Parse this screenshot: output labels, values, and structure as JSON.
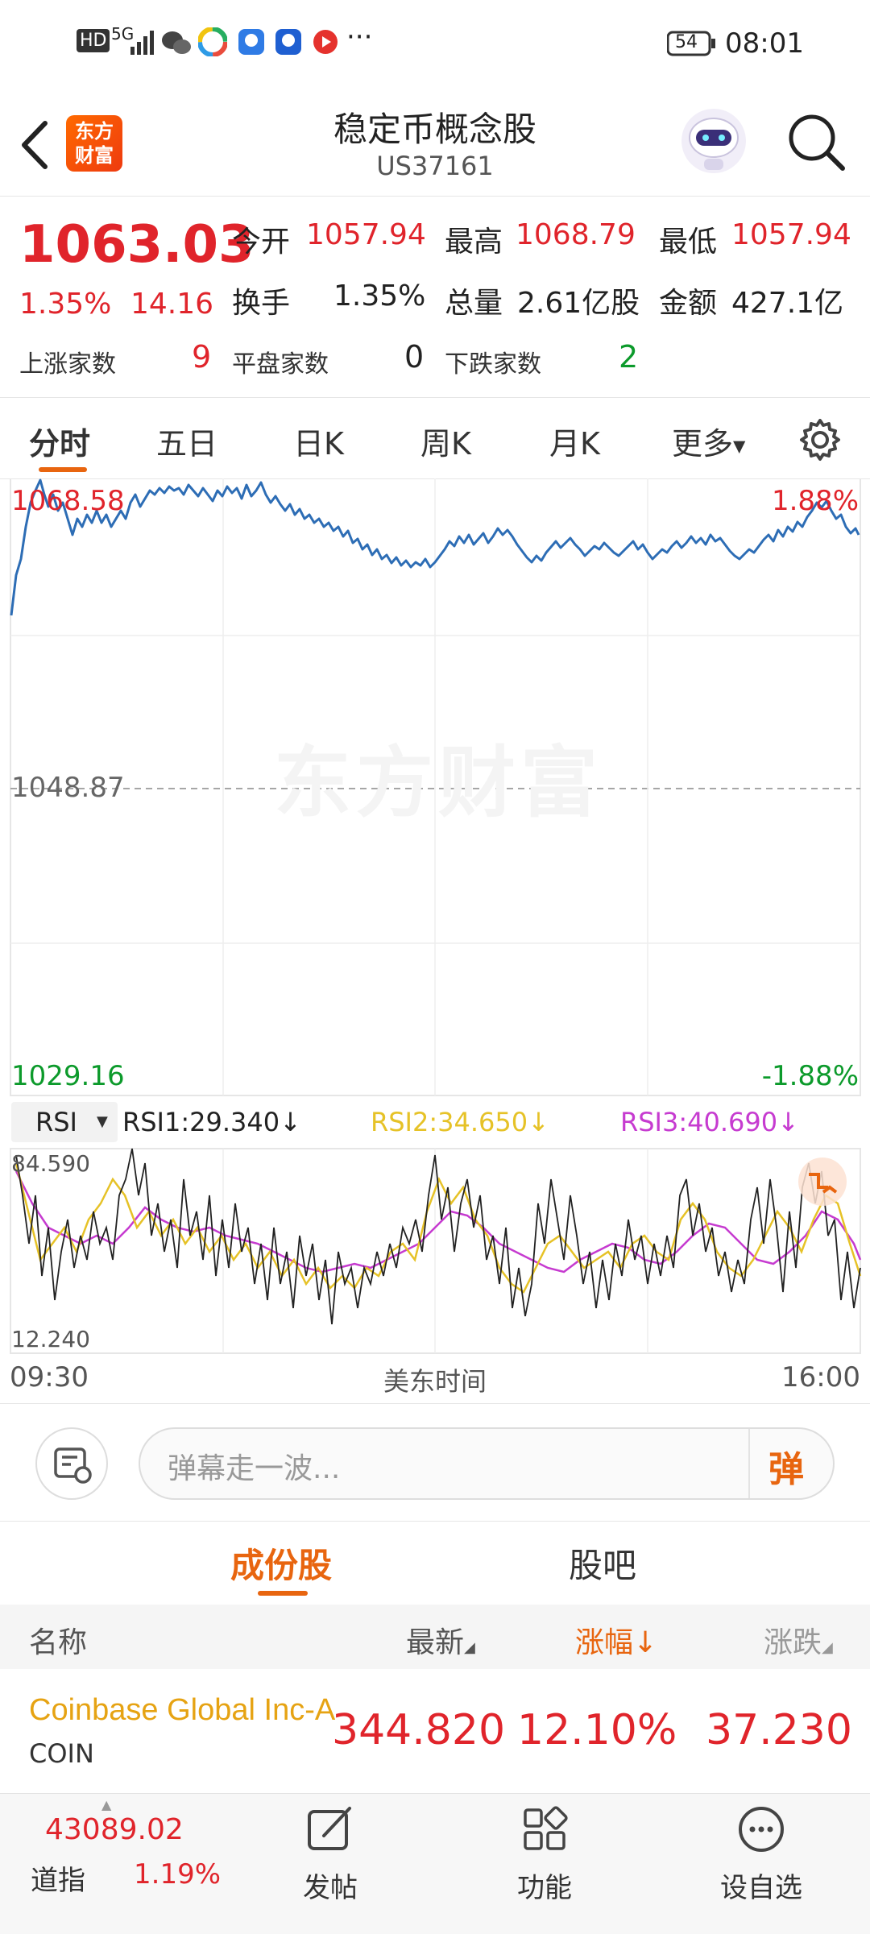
{
  "status_bar": {
    "time": "08:01",
    "battery": "54",
    "network": "5G",
    "hd": "HD"
  },
  "header": {
    "title": "稳定币概念股",
    "code": "US37161",
    "logo_line1": "东方",
    "logo_line2": "财富"
  },
  "quote": {
    "price": "1063.03",
    "change_pct": "1.35%",
    "change": "14.16",
    "open_label": "今开",
    "open": "1057.94",
    "high_label": "最高",
    "high": "1068.79",
    "low_label": "最低",
    "low": "1057.94",
    "turnover_label": "换手",
    "turnover": "1.35%",
    "volume_label": "总量",
    "volume": "2.61亿股",
    "amount_label": "金额",
    "amount": "427.1亿",
    "up_label": "上涨家数",
    "up": "9",
    "flat_label": "平盘家数",
    "flat": "0",
    "down_label": "下跌家数",
    "down": "2"
  },
  "tabs": [
    "分时",
    "五日",
    "日K",
    "周K",
    "月K",
    "更多"
  ],
  "chart": {
    "top_price": "1068.58",
    "top_pct": "1.88%",
    "mid_price": "1048.87",
    "bottom_price": "1029.16",
    "bottom_pct": "-1.88%",
    "watermark": "东方财富"
  },
  "rsi": {
    "selector": "RSI",
    "rsi1": "RSI1:29.340",
    "rsi2": "RSI2:34.650",
    "rsi3": "RSI3:40.690",
    "max": "84.590",
    "min": "12.240",
    "colors": {
      "rsi1": "#222222",
      "rsi2": "#e6c227",
      "rsi3": "#c63bd0"
    }
  },
  "time_axis": {
    "start": "09:30",
    "middle": "美东时间",
    "end": "16:00"
  },
  "comment": {
    "placeholder": "弹幕走一波...",
    "danmu_btn": "弹"
  },
  "section_tabs": [
    "成份股",
    "股吧"
  ],
  "table": {
    "headers": [
      "名称",
      "最新",
      "涨幅",
      "涨跌"
    ],
    "rows": [
      {
        "name": "Coinbase Global Inc-A",
        "code": "COIN",
        "last": "344.820",
        "pct": "12.10%",
        "chg": "37.230"
      }
    ]
  },
  "bottom_bar": {
    "index_value": "43089.02",
    "index_name": "道指",
    "index_pct": "1.19%",
    "post": "发帖",
    "features": "功能",
    "add_watch": "设自选"
  },
  "colors": {
    "up": "#e0242b",
    "down": "#0c9a2b",
    "accent": "#e8650f",
    "line": "#2d6db5"
  }
}
